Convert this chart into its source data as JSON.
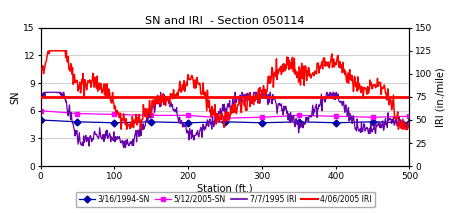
{
  "title": "SN and IRI  - Section 050114",
  "xlabel": "Station (ft.)",
  "ylabel_left": "SN",
  "ylabel_right": "IRI (in./mile)",
  "xlim": [
    0,
    500
  ],
  "ylim_left": [
    0,
    15
  ],
  "ylim_right": [
    0,
    150
  ],
  "yticks_left": [
    0,
    3,
    6,
    9,
    12,
    15
  ],
  "yticks_right": [
    0,
    25,
    50,
    75,
    100,
    125,
    150
  ],
  "xticks": [
    0,
    100,
    200,
    300,
    400,
    500
  ],
  "avg_iri_last": 75,
  "legend_labels": [
    "3/16/1994-SN",
    "5/12/2005-SN",
    "7/7/1995 IRI",
    "4/06/2005 IRI"
  ],
  "colors": {
    "sn1994": "#0000AA",
    "sn2005": "#FF00FF",
    "iri1995": "#6600AA",
    "iri2005": "#FF0000",
    "avg_line": "#FF0000",
    "grid": "#BBBBBB"
  },
  "background": "#FFFFFF"
}
